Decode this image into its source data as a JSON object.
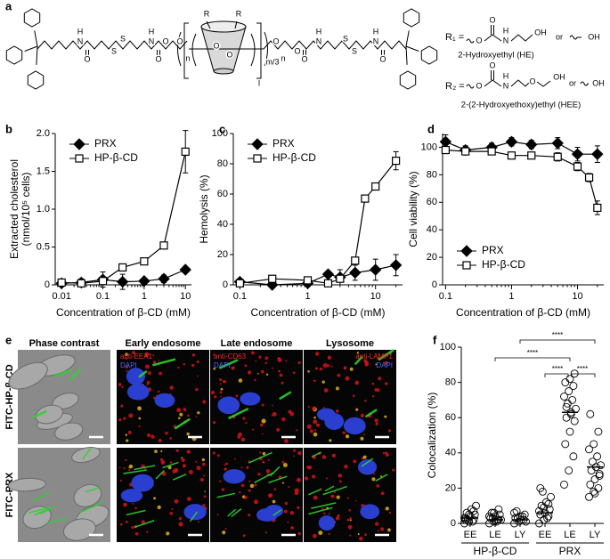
{
  "panel_labels": [
    "a",
    "b",
    "c",
    "d",
    "e",
    "f"
  ],
  "structure": {
    "labels": [
      "H",
      "N",
      "O",
      "S",
      "S",
      "H",
      "N",
      "O",
      "O",
      "O",
      "n",
      "R",
      "R",
      "O",
      "O",
      "l",
      "m/3",
      "O",
      "n",
      "O",
      "O",
      "H",
      "N",
      "S",
      "S",
      "H",
      "N",
      "O",
      "O",
      "O",
      "H",
      "N",
      "OH",
      "or",
      "OH",
      "O",
      "O",
      "H",
      "N",
      "O",
      "OH",
      "or",
      "OH"
    ],
    "substituents": [
      {
        "symbol": "R₁ =",
        "name": "2-Hydroxyethyl (HE)"
      },
      {
        "symbol": "R₂ =",
        "name": "2-(2-Hydroxyethoxy)ethyl (HEE)"
      }
    ]
  },
  "chart_data": [
    {
      "type": "line",
      "xscale": "log",
      "xlim": [
        0.007,
        14
      ],
      "xticks": [
        0.01,
        0.1,
        1,
        10
      ],
      "ylim": [
        0,
        2
      ],
      "yticks": [
        0,
        0.5,
        {
          "value": 1,
          "label": "1.0"
        },
        1.5,
        {
          "value": 2,
          "label": "2.0"
        }
      ],
      "xlabel": "Concentration of β-CD (mM)",
      "ylabel": [
        "Extracted cholesterol",
        "(nmol/10⁵ cells)"
      ],
      "legend": "upper left",
      "series": [
        {
          "name": "PRX",
          "marker": "diamond",
          "color": "#000000",
          "x": [
            0.01,
            0.03,
            0.1,
            0.3,
            1,
            3,
            10
          ],
          "values": [
            0.02,
            0.03,
            0.07,
            0.04,
            0.05,
            0.08,
            0.2
          ],
          "errors": [
            0.03,
            0.05,
            0.1,
            0.1,
            0.03,
            0.05,
            0.03
          ]
        },
        {
          "name": "HP-β-CD",
          "marker": "square",
          "color": "#000000",
          "x": [
            0.01,
            0.03,
            0.1,
            0.3,
            1,
            3,
            10
          ],
          "values": [
            0.03,
            0.02,
            0.05,
            0.23,
            0.31,
            0.52,
            1.76
          ],
          "errors": [
            0.02,
            0.03,
            0.04,
            0.03,
            0.02,
            0.03,
            0.28
          ]
        }
      ]
    },
    {
      "type": "line",
      "xscale": "log",
      "xlim": [
        0.08,
        25
      ],
      "xticks": [
        0.1,
        1,
        10
      ],
      "ylim": [
        0,
        100
      ],
      "yticks": [
        0,
        20,
        40,
        60,
        80,
        100
      ],
      "xlabel": "Concentration of β-CD (mM)",
      "ylabel": [
        "Hemolysis (%)"
      ],
      "legend": "upper left",
      "series": [
        {
          "name": "PRX",
          "marker": "diamond",
          "color": "#000000",
          "x": [
            0.1,
            0.3,
            1,
            2,
            3,
            5,
            10,
            20
          ],
          "values": [
            2,
            0,
            1,
            7,
            5,
            8,
            10,
            13
          ],
          "errors": [
            1,
            1,
            1,
            2,
            5,
            5,
            7,
            7
          ]
        },
        {
          "name": "HP-β-CD",
          "marker": "square",
          "color": "#000000",
          "x": [
            0.1,
            0.3,
            1,
            2,
            3,
            5,
            7,
            10,
            20
          ],
          "values": [
            1,
            4,
            3,
            1,
            4,
            16,
            57,
            65,
            82
          ],
          "errors": [
            1,
            1,
            1,
            1,
            1,
            2,
            2,
            2,
            6
          ]
        }
      ]
    },
    {
      "type": "line",
      "xscale": "log",
      "xlim": [
        0.09,
        25
      ],
      "xticks": [
        0.1,
        1,
        10
      ],
      "ylim": [
        0,
        110
      ],
      "yticks": [
        0,
        20,
        40,
        60,
        80,
        100
      ],
      "xlabel": "Concentration of β-CD (mM)",
      "ylabel": [
        "Cell viability (%)"
      ],
      "legend": "lower left",
      "series": [
        {
          "name": "PRX",
          "marker": "diamond",
          "color": "#000000",
          "x": [
            0.1,
            0.2,
            0.5,
            1,
            2,
            5,
            10,
            20
          ],
          "values": [
            104,
            98,
            100,
            104,
            102,
            103,
            95,
            95
          ],
          "errors": [
            5,
            3,
            3,
            3,
            3,
            4,
            5,
            6
          ]
        },
        {
          "name": "HP-β-CD",
          "marker": "square",
          "color": "#000000",
          "x": [
            0.1,
            0.2,
            0.5,
            1,
            2,
            5,
            10,
            15,
            20
          ],
          "values": [
            98,
            97,
            97,
            94,
            94,
            93,
            86,
            78,
            56
          ],
          "errors": [
            2,
            2,
            2,
            2,
            2,
            3,
            3,
            3,
            5
          ]
        }
      ]
    },
    {
      "type": "strip",
      "categories": [
        "EE",
        "LE",
        "LY"
      ],
      "ylim": [
        0,
        100
      ],
      "yticks": [
        0,
        20,
        40,
        60,
        80,
        100
      ],
      "ylabel": [
        "Colocalization (%)"
      ],
      "groups": [
        {
          "name": "HP-β-CD",
          "values": [
            [
              0,
              1,
              2,
              3,
              4,
              5,
              6,
              8,
              10,
              2,
              1,
              3,
              5,
              7,
              2
            ],
            [
              0,
              1,
              2,
              3,
              4,
              5,
              6,
              1,
              2,
              3,
              2,
              4,
              6,
              8
            ],
            [
              0,
              1,
              2,
              3,
              4,
              5,
              7,
              2,
              1,
              3,
              4,
              6
            ]
          ],
          "medians": [
            3,
            2,
            2
          ]
        },
        {
          "name": "PRX",
          "values": [
            [
              0,
              2,
              4,
              5,
              6,
              8,
              10,
              12,
              15,
              18,
              3,
              7,
              9,
              11,
              20
            ],
            [
              22,
              30,
              38,
              45,
              52,
              58,
              60,
              62,
              65,
              68,
              70,
              72,
              75,
              78,
              80,
              82,
              85,
              66,
              63
            ],
            [
              15,
              18,
              20,
              22,
              25,
              28,
              30,
              32,
              33,
              35,
              38,
              42,
              45,
              52,
              62,
              17,
              27
            ]
          ],
          "medians": [
            6,
            63,
            32
          ]
        }
      ],
      "significance": [
        "****",
        "****",
        "****",
        "****"
      ]
    }
  ],
  "micrographs": {
    "columns": [
      "Phase contrast",
      "Early endosome",
      "Late endosome",
      "Lysosome"
    ],
    "rows": [
      "FITC-HP-β-CD",
      "FITC-PRX"
    ],
    "stains": [
      [
        "anti-EEA1",
        "DAPI"
      ],
      [
        "anti-CD63",
        "DAPI"
      ],
      [
        "anti-LAMP1",
        "DAPI"
      ]
    ]
  }
}
